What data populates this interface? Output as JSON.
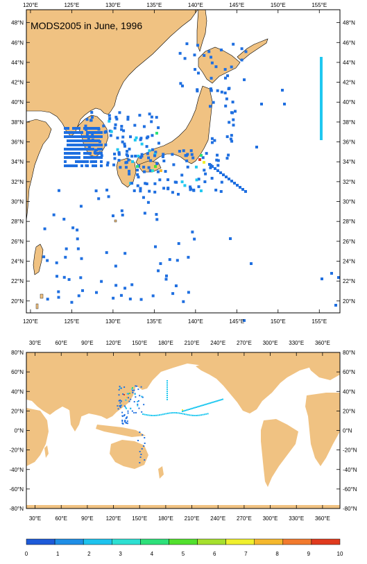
{
  "top_map": {
    "title": "MODS2005 in June, 1996",
    "lon_labels": [
      "120°E",
      "125°E",
      "130°E",
      "135°E",
      "140°E",
      "145°E",
      "150°E",
      "155°E"
    ],
    "lat_labels": [
      "48°N",
      "46°N",
      "44°N",
      "42°N",
      "40°N",
      "38°N",
      "36°N",
      "34°N",
      "32°N",
      "30°N",
      "28°N",
      "26°N",
      "24°N",
      "22°N",
      "20°N"
    ],
    "lon_range": [
      119.5,
      157.5
    ],
    "lat_range": [
      18.8,
      49.3
    ]
  },
  "bottom_map": {
    "lon_labels": [
      "30°E",
      "60°E",
      "90°E",
      "120°E",
      "150°E",
      "180°E",
      "210°E",
      "240°E",
      "270°E",
      "300°E",
      "330°E",
      "360°E"
    ],
    "lat_labels": [
      "80°N",
      "60°N",
      "40°N",
      "20°N",
      "0°N",
      "-20°N",
      "-40°N",
      "-60°N",
      "-80°N"
    ],
    "lon_range": [
      20,
      380
    ],
    "lat_range": [
      -80,
      80
    ]
  },
  "colorbar": {
    "labels": [
      "0",
      "1",
      "2",
      "3",
      "4",
      "5",
      "6",
      "7",
      "8",
      "9",
      "10"
    ],
    "colors": [
      "#1e5ad8",
      "#1f8ee6",
      "#1ec3ee",
      "#2ee0d2",
      "#2ee07a",
      "#52e02e",
      "#a6e02e",
      "#f0f02e",
      "#f5b82e",
      "#f27a2e",
      "#e03a1e"
    ]
  },
  "colors": {
    "land": "#f0c282",
    "ocean": "#ffffff",
    "obs_main": "#1f6fe0",
    "obs_light": "#20c8f0"
  }
}
